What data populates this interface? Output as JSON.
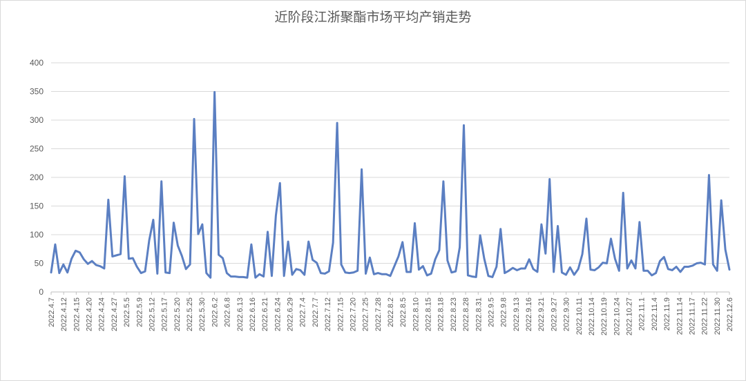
{
  "chart_data": {
    "type": "line",
    "title": "近阶段江浙聚酯市场平均产销走势",
    "xlabel": "",
    "ylabel": "",
    "ylim": [
      0,
      400
    ],
    "yticks": [
      0,
      50,
      100,
      150,
      200,
      250,
      300,
      350,
      400
    ],
    "grid": "horizontal",
    "legend": "none",
    "colors": {
      "line": "#5B7FC2",
      "grid": "#d9d9d9",
      "axis": "#bfbfbf",
      "text": "#595959"
    },
    "x_tick_labels": [
      "2022.4.7",
      "2022.4.12",
      "2022.4.15",
      "2022.4.20",
      "2022.4.24",
      "2022.4.27",
      "2022.5.5",
      "2022.5.9",
      "2022.5.12",
      "2022.5.17",
      "2022.5.20",
      "2022.5.25",
      "2022.5.30",
      "2022.6.2",
      "2022.6.8",
      "2022.6.13",
      "2022.6.16",
      "2022.6.21",
      "2022.6.24",
      "2022.6.29",
      "2022.7.4",
      "2022.7.7",
      "2022.7.12",
      "2022.7.15",
      "2022.7.20",
      "2022.7.25",
      "2022.7.28",
      "2022.8.2",
      "2022.8.5",
      "2022.8.10",
      "2022.8.15",
      "2022.8.18",
      "2022.8.23",
      "2022.8.28",
      "2022.8.31",
      "2022.9.5",
      "2022.9.8",
      "2022.9.13",
      "2022.9.16",
      "2022.9.21",
      "2022.9.27",
      "2022.9.30",
      "2022.10.11",
      "2022.10.14",
      "2022.10.19",
      "2022.10.24",
      "2022.10.27",
      "2022.11.1",
      "2022.11.4",
      "2022.11.9",
      "2022.11.14",
      "2022.11.17",
      "2022.11.22",
      "2022.11.30",
      "2022.12.6"
    ],
    "values": [
      34,
      83,
      33,
      48,
      34,
      58,
      72,
      69,
      57,
      49,
      54,
      47,
      45,
      41,
      161,
      62,
      64,
      66,
      202,
      58,
      59,
      44,
      33,
      36,
      90,
      126,
      32,
      193,
      34,
      33,
      121,
      81,
      63,
      40,
      48,
      302,
      101,
      118,
      33,
      25,
      349,
      65,
      59,
      33,
      27,
      27,
      26,
      26,
      25,
      83,
      25,
      31,
      27,
      105,
      28,
      133,
      190,
      28,
      88,
      30,
      40,
      38,
      30,
      88,
      56,
      51,
      33,
      32,
      36,
      86,
      295,
      48,
      34,
      33,
      34,
      37,
      214,
      32,
      60,
      31,
      33,
      31,
      31,
      28,
      45,
      62,
      87,
      35,
      35,
      120,
      39,
      45,
      29,
      32,
      57,
      73,
      193,
      55,
      34,
      36,
      78,
      291,
      29,
      27,
      26,
      99,
      58,
      28,
      26,
      44,
      110,
      33,
      37,
      42,
      38,
      41,
      41,
      57,
      40,
      35,
      118,
      67,
      197,
      35,
      115,
      34,
      30,
      43,
      30,
      40,
      66,
      128,
      39,
      38,
      43,
      51,
      50,
      93,
      58,
      37,
      173,
      41,
      55,
      41,
      122,
      37,
      37,
      29,
      33,
      54,
      61,
      40,
      38,
      44,
      35,
      44,
      44,
      46,
      50,
      51,
      48,
      204,
      48,
      37,
      160,
      74,
      39
    ]
  }
}
